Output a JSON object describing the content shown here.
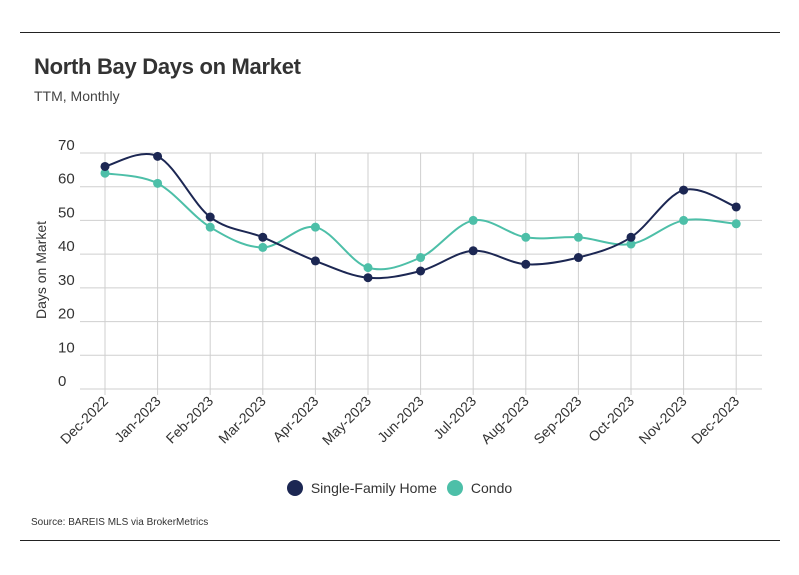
{
  "header": {
    "title": "North Bay Days on Market",
    "subtitle": "TTM, Monthly"
  },
  "footer": {
    "source": "Source:  BAREIS MLS via BrokerMetrics"
  },
  "colors": {
    "single_family": "#1c2753",
    "condo": "#4dbfa8",
    "grid": "#cfcfcf",
    "text": "#333333"
  },
  "chart_data": {
    "type": "line",
    "title": "North Bay Days on Market",
    "subtitle": "TTM, Monthly",
    "xlabel": "",
    "ylabel": "Days on Market",
    "ylim": [
      0,
      70
    ],
    "yticks": [
      0,
      10,
      20,
      30,
      40,
      50,
      60,
      70
    ],
    "grid": true,
    "legend_position": "bottom",
    "categories": [
      "Dec-2022",
      "Jan-2023",
      "Feb-2023",
      "Mar-2023",
      "Apr-2023",
      "May-2023",
      "Jun-2023",
      "Jul-2023",
      "Aug-2023",
      "Sep-2023",
      "Oct-2023",
      "Nov-2023",
      "Dec-2023"
    ],
    "series": [
      {
        "name": "Single-Family Home",
        "color": "#1c2753",
        "values": [
          66,
          69,
          51,
          45,
          38,
          33,
          35,
          41,
          37,
          39,
          45,
          59,
          54
        ]
      },
      {
        "name": "Condo",
        "color": "#4dbfa8",
        "values": [
          64,
          61,
          48,
          42,
          48,
          36,
          39,
          50,
          45,
          45,
          43,
          50,
          49
        ]
      }
    ]
  }
}
